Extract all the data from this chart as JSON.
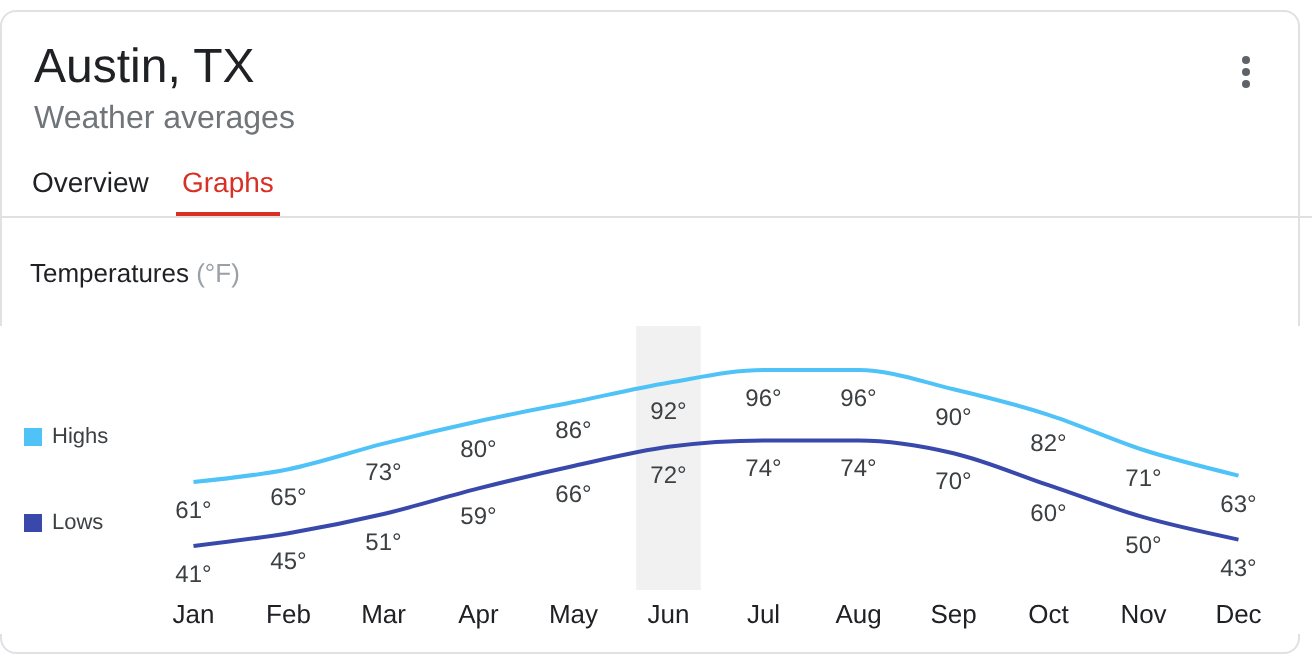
{
  "chart_data": {
    "type": "line",
    "title": "Austin, TX",
    "subtitle": "Weather averages",
    "ylabel": "Temperatures (°F)",
    "annotations": [
      "Overview",
      "Graphs"
    ],
    "categories": [
      "Jan",
      "Feb",
      "Mar",
      "Apr",
      "May",
      "Jun",
      "Jul",
      "Aug",
      "Sep",
      "Oct",
      "Nov",
      "Dec"
    ],
    "series": [
      {
        "name": "Highs",
        "color": "#4fc3f7",
        "values": [
          61,
          65,
          73,
          80,
          86,
          92,
          96,
          96,
          90,
          82,
          71,
          63
        ],
        "value_labels": [
          "61°",
          "65°",
          "73°",
          "80°",
          "86°",
          "92°",
          "96°",
          "96°",
          "90°",
          "82°",
          "71°",
          "63°"
        ]
      },
      {
        "name": "Lows",
        "color": "#3949ab",
        "values": [
          41,
          45,
          51,
          59,
          66,
          72,
          74,
          74,
          70,
          60,
          50,
          43
        ],
        "value_labels": [
          "41°",
          "45°",
          "51°",
          "59°",
          "66°",
          "72°",
          "74°",
          "74°",
          "70°",
          "60°",
          "50°",
          "43°"
        ]
      }
    ],
    "bands": [
      {
        "axis": "x",
        "from": "Jun",
        "to": "Jun",
        "color": "#f1f1f1"
      }
    ],
    "legend": "left",
    "grid": false,
    "marker": "none",
    "line_style": "solid"
  }
}
